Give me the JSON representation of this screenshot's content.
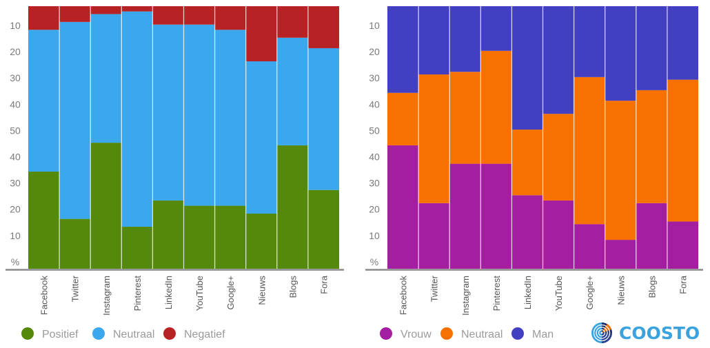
{
  "chart_data": [
    {
      "type": "bar",
      "stacked": true,
      "normalized": true,
      "title": "",
      "xlabel": "",
      "ylabel": "%",
      "ylim": [
        0,
        100
      ],
      "y_tick_labels_top_down": [
        "10",
        "20",
        "30",
        "40",
        "50",
        "40",
        "30",
        "20",
        "10",
        "%"
      ],
      "categories": [
        "Facebook",
        "Twitter",
        "Instagram",
        "Pinterest",
        "LinkedIn",
        "YouTube",
        "Google+",
        "Nieuws",
        "Blogs",
        "Fora"
      ],
      "series": [
        {
          "name": "Positief",
          "color": "#54890c",
          "values": [
            37,
            19,
            48,
            16,
            26,
            24,
            24,
            21,
            47,
            30
          ]
        },
        {
          "name": "Neutraal",
          "color": "#3ba8ee",
          "values": [
            54,
            75,
            49,
            82,
            67,
            69,
            67,
            58,
            41,
            54
          ]
        },
        {
          "name": "Negatief",
          "color": "#b72224",
          "values": [
            9,
            6,
            3,
            2,
            7,
            7,
            9,
            21,
            12,
            16
          ]
        }
      ],
      "legend": "bottom-left"
    },
    {
      "type": "bar",
      "stacked": true,
      "normalized": true,
      "title": "",
      "xlabel": "",
      "ylabel": "%",
      "ylim": [
        0,
        100
      ],
      "y_tick_labels_top_down": [
        "10",
        "20",
        "30",
        "40",
        "50",
        "40",
        "30",
        "20",
        "10",
        "%"
      ],
      "categories": [
        "Facebook",
        "Twitter",
        "Instagram",
        "Pinterest",
        "LinkedIn",
        "YouTube",
        "Google+",
        "Nieuws",
        "Blogs",
        "Fora"
      ],
      "series": [
        {
          "name": "Vrouw",
          "color": "#a31ea0",
          "values": [
            47,
            25,
            40,
            40,
            28,
            26,
            17,
            11,
            25,
            18
          ]
        },
        {
          "name": "Neutraal",
          "color": "#f77100",
          "values": [
            20,
            49,
            35,
            43,
            25,
            33,
            56,
            53,
            43,
            54
          ]
        },
        {
          "name": "Man",
          "color": "#4240c0",
          "values": [
            33,
            26,
            25,
            17,
            47,
            41,
            27,
            36,
            32,
            28
          ]
        }
      ],
      "legend": "bottom-left"
    }
  ],
  "logo": {
    "text": "COOSTO",
    "icon": "coosto-radar-icon",
    "color": "#3aa3dd"
  }
}
